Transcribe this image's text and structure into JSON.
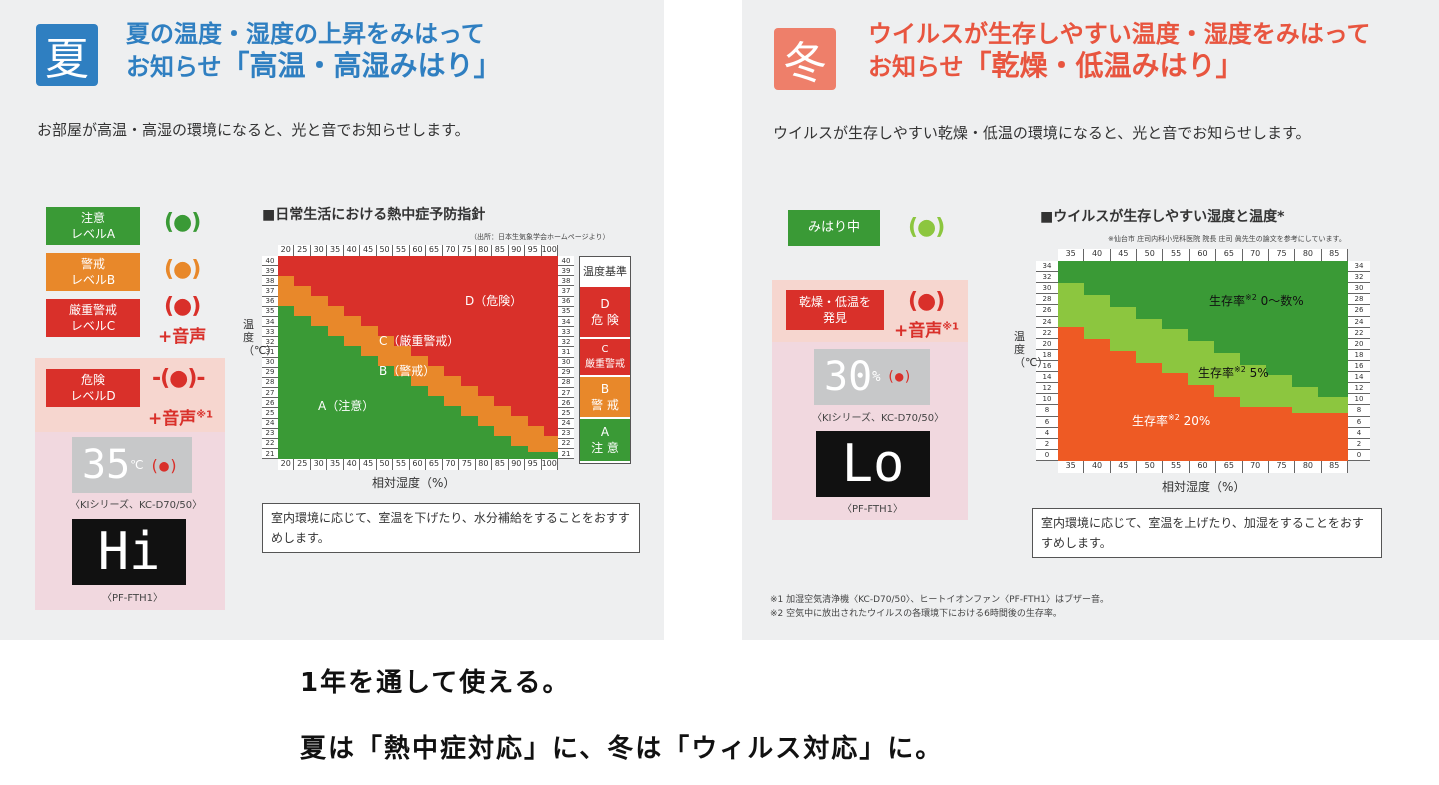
{
  "summer": {
    "kanji": "夏",
    "heading_line1": "夏の温度・湿度の上昇をみはって",
    "heading_line2_prefix": "お知らせ",
    "heading_line2_big": "「高温・高湿みはり」",
    "subtitle": "お部屋が高温・高湿の環境になると、光と音でお知らせします。",
    "levels": [
      {
        "label1": "注意",
        "label2": "レベルA",
        "color": "#3a9a36"
      },
      {
        "label1": "警戒",
        "label2": "レベルB",
        "color": "#e8882a"
      },
      {
        "label1": "厳重警戒",
        "label2": "レベルC",
        "color": "#d9302a"
      },
      {
        "label1": "危険",
        "label2": "レベルD",
        "color": "#d9302a"
      }
    ],
    "sound_label": "+音声",
    "sound_label_note": "※1",
    "display1_value": "35",
    "display1_unit": "℃",
    "display1_caption": "〈KIシリーズ、KC-D70/50〉",
    "display2_value": "Hi",
    "display2_caption": "〈PF-FTH1〉",
    "chart_title": "■日常生活における熱中症予防指針",
    "chart_source": "（出所：日本生気象学会ホームページより）",
    "x_axis_label": "相対湿度（%）",
    "y_axis_label": "温度（℃）",
    "x_ticks": [
      "20",
      "25",
      "30",
      "35",
      "40",
      "45",
      "50",
      "55",
      "60",
      "65",
      "70",
      "75",
      "80",
      "85",
      "90",
      "95",
      "100"
    ],
    "y_ticks": [
      "40",
      "39",
      "38",
      "37",
      "36",
      "35",
      "34",
      "33",
      "32",
      "31",
      "30",
      "29",
      "28",
      "27",
      "26",
      "25",
      "24",
      "23",
      "22",
      "21"
    ],
    "region_labels": {
      "d": "D（危険）",
      "c": "C（厳重警戒）",
      "b": "B（警戒）",
      "a": "A（注意）"
    },
    "legend_header": "温度基準",
    "legend": [
      {
        "label1": "D",
        "label2": "危 険",
        "color": "#d9302a"
      },
      {
        "label1": "C",
        "label2": "厳重警戒",
        "color": "#d9302a"
      },
      {
        "label1": "B",
        "label2": "警 戒",
        "color": "#e8882a"
      },
      {
        "label1": "A",
        "label2": "注 意",
        "color": "#3a9a36"
      }
    ],
    "note": "室内環境に応じて、室温を下げたり、水分補給をすることをおすすめします。"
  },
  "winter": {
    "kanji": "冬",
    "heading_line1": "ウイルスが生存しやすい温度・湿度をみはって",
    "heading_line2_prefix": "お知らせ",
    "heading_line2_big": "「乾燥・低温みはり」",
    "subtitle": "ウイルスが生存しやすい乾燥・低温の環境になると、光と音でお知らせします。",
    "status_label": "みはり中",
    "alert_label1": "乾燥・低温を",
    "alert_label2": "発見",
    "sound_label": "+音声",
    "sound_label_note": "※1",
    "display1_value": "30",
    "display1_unit": "%",
    "display1_caption": "〈KIシリーズ、KC-D70/50〉",
    "display2_value": "Lo",
    "display2_caption": "〈PF-FTH1〉",
    "chart_title": "■ウイルスが生存しやすい湿度と温度*",
    "chart_source": "※仙台市 庄司内科小児科医院 院長 庄司 眞先生の論文を参考にしています。",
    "x_axis_label": "相対湿度（%）",
    "y_axis_label": "温度（℃）",
    "x_ticks": [
      "35",
      "40",
      "45",
      "50",
      "55",
      "60",
      "65",
      "70",
      "75",
      "80",
      "85"
    ],
    "y_ticks": [
      "34",
      "32",
      "30",
      "28",
      "26",
      "24",
      "22",
      "20",
      "18",
      "16",
      "14",
      "12",
      "10",
      "8",
      "6",
      "4",
      "2",
      "0"
    ],
    "region_labels": {
      "top": "生存率",
      "top_note": "※2",
      "top_value": " 0～数%",
      "mid": "生存率",
      "mid_note": "※2",
      "mid_value": " 5%",
      "low": "生存率",
      "low_note": "※2",
      "low_value": " 20%"
    },
    "note": "室内環境に応じて、室温を上げたり、加湿をすることをおすすめします。",
    "footnote1": "※1 加湿空気清浄機〈KC-D70/50〉、ヒートイオンファン〈PF-FTH1〉はブザー音。",
    "footnote2": "※2 空気中に放出されたウイルスの各環境下における6時間後の生存率。"
  },
  "caption": {
    "line1": "1年を通して使える。",
    "line2": "夏は「熱中症対応」に、冬は「ウィルス対応」に。"
  },
  "colors": {
    "summer_blue": "#2f7fc1",
    "winter_red": "#e8553f",
    "green": "#3a9a36",
    "light_green": "#8cc63f",
    "orange": "#e8882a",
    "red": "#d9302a",
    "winter_orange": "#ee5a24"
  }
}
